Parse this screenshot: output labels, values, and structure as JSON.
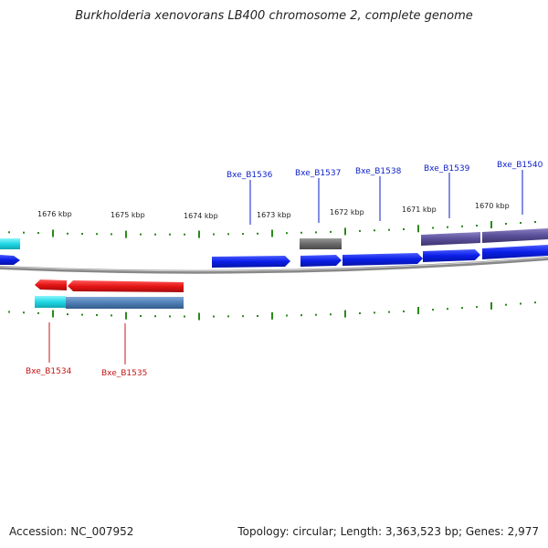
{
  "title": "Burkholderia xenovorans LB400 chromosome 2, complete genome",
  "accession": "Accession: NC_007952",
  "summary": "Topology: circular; Length: 3,363,523 bp; Genes: 2,977",
  "colors": {
    "backbone": "#8a8a8a",
    "forward_cds": "#0a1ee6",
    "reverse_cds": "#e51414",
    "forward_label": "#0a1ec8",
    "reverse_label": "#c81414",
    "tick": "#2a8a1a",
    "cyan_feature": "#1fd8e6",
    "steelblue_feature": "#4f7fb5",
    "gray_feature": "#6a6a6a",
    "purple_feature": "#5a4f99"
  },
  "scale_labels": [
    "1676 kbp",
    "1675 kbp",
    "1674 kbp",
    "1673 kbp",
    "1672 kbp",
    "1671 kbp",
    "1670 kbp"
  ],
  "forward_genes": [
    "Bxe_B1536",
    "Bxe_B1537",
    "Bxe_B1538",
    "Bxe_B1539",
    "Bxe_B1540"
  ],
  "reverse_genes": [
    "Bxe_B1534",
    "Bxe_B1535"
  ]
}
